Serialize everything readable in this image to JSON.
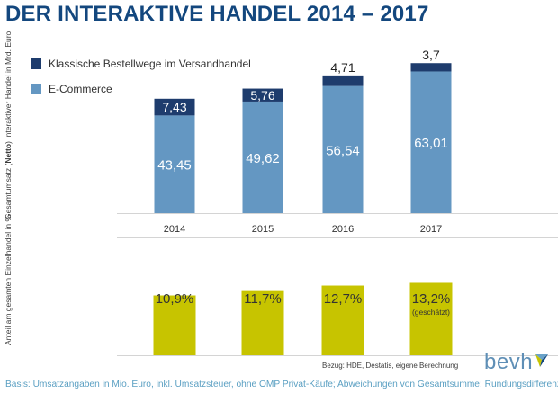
{
  "title": "DER INTERAKTIVE HANDEL 2014 – 2017",
  "colors": {
    "title": "#13477e",
    "classic": "#1e3c6d",
    "ecommerce": "#6497c2",
    "share": "#c7c400",
    "axis": "#d4d4d4",
    "footnote": "#5a9fc2",
    "logo": "#5f8fb6"
  },
  "chart_data": [
    {
      "type": "bar",
      "stacked": true,
      "categories": [
        "2014",
        "2015",
        "2016",
        "2017"
      ],
      "series": [
        {
          "name": "E-Commerce",
          "values": [
            43.45,
            49.62,
            56.54,
            63.01
          ],
          "labels": [
            "43,45",
            "49,62",
            "56,54",
            "63,01"
          ]
        },
        {
          "name": "Klassische Bestellwege im Versandhandel",
          "values": [
            7.43,
            5.76,
            4.71,
            3.7
          ],
          "labels": [
            "7,43",
            "5,76",
            "4,71",
            "3,7"
          ]
        }
      ],
      "ylabel_prefix": "Gesamtumsatz (",
      "ylabel_bold": "Netto",
      "ylabel_suffix": ") Interaktiver Handel in Mrd. Euro",
      "ylim": [
        0,
        70
      ],
      "legend_position": "top-left",
      "grid": false
    },
    {
      "type": "bar",
      "categories": [
        "2014",
        "2015",
        "2016",
        "2017"
      ],
      "values": [
        10.9,
        11.7,
        12.7,
        13.2
      ],
      "labels": [
        "10,9%",
        "11,7%",
        "12,7%",
        "13,2%"
      ],
      "annotations": [
        "",
        "",
        "",
        "(geschätzt)"
      ],
      "ylabel": "Anteil am gesamten Einzelhandel in %",
      "ylim": [
        0,
        14
      ],
      "grid": false
    }
  ],
  "source_note": "Bezug: HDE, Destatis, eigene Berechnung",
  "logo_text": "bevh",
  "footnote": "Basis: Umsatzangaben in Mio. Euro, inkl. Umsatzsteuer, ohne OMP Privat-Käufe; Abweichungen von Gesamtsumme: Rundungsdifferenzen"
}
